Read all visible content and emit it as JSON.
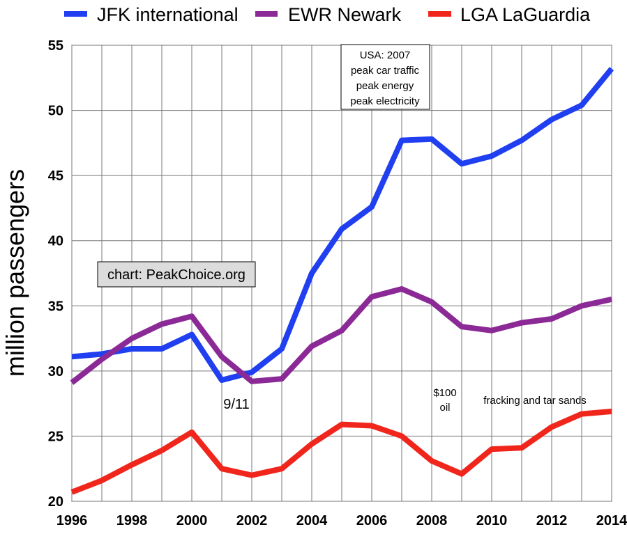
{
  "chart_data": {
    "type": "line",
    "title": "",
    "xlabel": "",
    "ylabel": "million passengers",
    "x": [
      1996,
      1997,
      1998,
      1999,
      2000,
      2001,
      2002,
      2003,
      2004,
      2005,
      2006,
      2007,
      2008,
      2009,
      2010,
      2011,
      2012,
      2013,
      2014
    ],
    "xlim": [
      1996,
      2014
    ],
    "ylim": [
      20,
      55
    ],
    "x_ticks": [
      "1996",
      "1998",
      "2000",
      "2002",
      "2004",
      "2006",
      "2008",
      "2010",
      "2012",
      "2014"
    ],
    "y_ticks": [
      "20",
      "25",
      "30",
      "35",
      "40",
      "45",
      "50",
      "55"
    ],
    "grid": true,
    "legend_position": "top",
    "series": [
      {
        "name": "JFK international",
        "color": "#1f3ff0",
        "values": [
          31.1,
          31.3,
          31.7,
          31.7,
          32.8,
          29.3,
          29.9,
          31.7,
          37.5,
          40.9,
          42.6,
          47.7,
          47.8,
          45.9,
          46.5,
          47.7,
          49.3,
          50.4,
          53.2
        ]
      },
      {
        "name": "EWR Newark",
        "color": "#8b2a96",
        "values": [
          29.1,
          30.9,
          32.5,
          33.6,
          34.2,
          31.1,
          29.2,
          29.4,
          31.9,
          33.1,
          35.7,
          36.3,
          35.3,
          33.4,
          33.1,
          33.7,
          34.0,
          35.0,
          35.5
        ]
      },
      {
        "name": "LGA LaGuardia",
        "color": "#f0261c",
        "values": [
          20.7,
          21.6,
          22.8,
          23.9,
          25.3,
          22.5,
          22.0,
          22.5,
          24.4,
          25.9,
          25.8,
          25.0,
          23.1,
          22.1,
          24.0,
          24.1,
          25.7,
          26.7,
          26.9
        ]
      }
    ],
    "annotations": {
      "usa_box": [
        "USA: 2007",
        "peak car traffic",
        "peak energy",
        "peak electricity"
      ],
      "source": "chart: PeakChoice.org",
      "event_911": "9/11",
      "oil": [
        "$100",
        "oil"
      ],
      "fracking": "fracking and tar sands"
    }
  }
}
